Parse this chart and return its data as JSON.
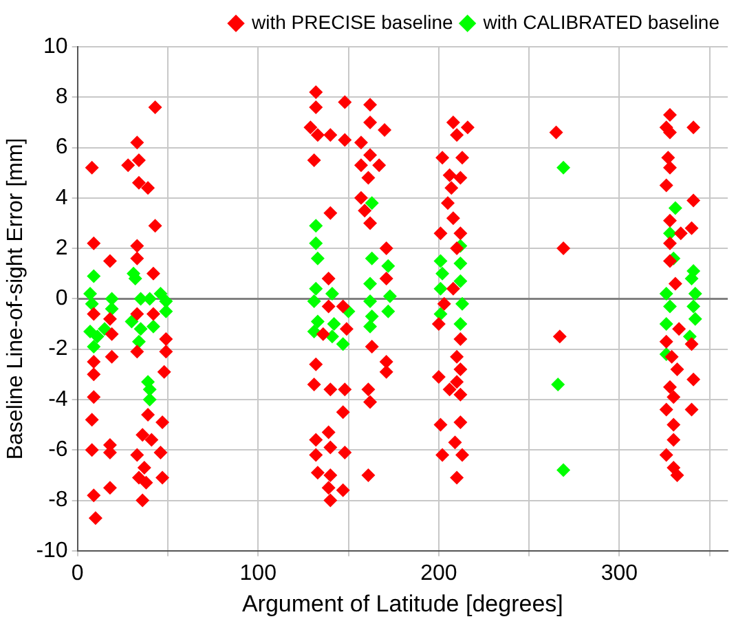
{
  "chart_data": {
    "type": "scatter",
    "xlabel": "Argument of Latitude [degrees]",
    "ylabel": "Baseline Line-of-sight Error [mm]",
    "xlim": [
      0,
      360
    ],
    "xticks": [
      0,
      {
        "value": 50,
        "label": null
      },
      100,
      {
        "value": 150,
        "label": null
      },
      200,
      {
        "value": 250,
        "label": null
      },
      300,
      {
        "value": 350,
        "label": null
      }
    ],
    "ylim": [
      -10,
      10
    ],
    "yticks": [
      -10,
      -8,
      -6,
      -4,
      -2,
      0,
      2,
      4,
      6,
      8,
      10
    ],
    "grid": true,
    "legend": "top right",
    "marker": "diamond",
    "ref_lines": [
      {
        "axis": "y",
        "value": 0,
        "color": "#808080"
      }
    ],
    "series": [
      {
        "name": "with PRECISE baseline",
        "color": "#ff0000",
        "x": [
          8,
          43,
          33,
          34,
          28,
          34,
          39,
          43,
          9,
          18,
          33,
          33,
          42,
          9,
          18,
          19,
          33,
          42,
          49,
          49,
          33,
          9,
          9,
          19,
          48,
          9,
          8,
          39,
          47,
          36,
          41,
          8,
          18,
          18,
          33,
          46,
          37,
          34,
          38,
          47,
          36,
          9,
          18,
          10,
          132,
          132,
          148,
          129,
          133,
          140,
          131,
          148,
          157,
          162,
          162,
          170,
          162,
          167,
          157,
          161,
          157,
          159,
          162,
          140,
          171,
          171,
          139,
          139,
          147,
          136,
          149,
          132,
          131,
          140,
          148,
          147,
          161,
          162,
          163,
          171,
          171,
          132,
          139,
          132,
          140,
          148,
          133,
          140,
          147,
          139,
          140,
          161,
          208,
          216,
          210,
          202,
          213,
          206,
          212,
          207,
          205,
          208,
          201,
          212,
          210,
          208,
          203,
          200,
          212,
          210,
          200,
          212,
          206,
          212,
          210,
          201,
          212,
          209,
          202,
          213,
          210,
          265,
          269,
          267,
          326,
          328,
          341,
          328,
          327,
          328,
          326,
          341,
          328,
          340,
          334,
          328,
          328,
          331,
          333,
          326,
          340,
          329,
          332,
          341,
          328,
          330,
          326,
          340,
          330,
          330,
          326,
          330,
          332
        ],
        "values": [
          5.2,
          7.6,
          6.2,
          5.5,
          5.3,
          4.6,
          4.4,
          2.9,
          2.2,
          1.5,
          2.1,
          1.6,
          1.0,
          -0.6,
          -0.8,
          -1.4,
          -0.6,
          -0.6,
          -1.6,
          -2.1,
          -2.1,
          -2.5,
          -3.0,
          -2.3,
          -2.9,
          -3.9,
          -4.8,
          -4.6,
          -4.9,
          -5.4,
          -5.6,
          -6.0,
          -5.8,
          -6.1,
          -6.2,
          -6.1,
          -6.7,
          -7.1,
          -7.3,
          -7.1,
          -8.0,
          -7.8,
          -7.5,
          -8.7,
          8.2,
          7.6,
          7.8,
          6.8,
          6.5,
          6.5,
          5.5,
          6.3,
          6.2,
          7.7,
          7.0,
          6.7,
          5.7,
          5.3,
          5.3,
          4.8,
          4.0,
          3.5,
          3.0,
          3.4,
          2.0,
          0.8,
          0.8,
          -0.3,
          -0.3,
          -1.4,
          -1.2,
          -2.6,
          -3.4,
          -3.6,
          -3.6,
          -4.5,
          -3.6,
          -4.1,
          -1.9,
          -2.5,
          -2.9,
          -5.6,
          -5.3,
          -6.2,
          -5.9,
          -6.1,
          -6.9,
          -7.0,
          -7.6,
          -7.5,
          -8.0,
          -7.0,
          7.0,
          6.8,
          6.5,
          5.6,
          5.6,
          4.9,
          4.8,
          4.4,
          3.8,
          3.2,
          2.6,
          2.6,
          2.0,
          0.4,
          -0.2,
          -1.0,
          -1.6,
          -2.3,
          -3.1,
          -2.8,
          -3.6,
          -3.8,
          -3.3,
          -5.0,
          -4.9,
          -5.7,
          -6.2,
          -6.2,
          -7.1,
          6.6,
          2.0,
          -1.5,
          6.8,
          7.3,
          6.8,
          6.6,
          5.6,
          5.2,
          4.5,
          3.9,
          3.1,
          2.8,
          2.6,
          2.2,
          1.5,
          0.6,
          -1.2,
          -1.7,
          -1.8,
          -2.3,
          -2.8,
          -3.2,
          -3.5,
          -3.9,
          -4.4,
          -4.4,
          -5.0,
          -5.6,
          -6.2,
          -6.7,
          -7.0
        ]
      },
      {
        "name": "with CALIBRATED baseline",
        "color": "#00ff00",
        "x": [
          9,
          7,
          8,
          7,
          9,
          11,
          19,
          19,
          15,
          31,
          32,
          35,
          30,
          35,
          34,
          40,
          42,
          46,
          49,
          49,
          39,
          40,
          40,
          132,
          132,
          133,
          132,
          131,
          133,
          131,
          141,
          142,
          141,
          147,
          150,
          163,
          163,
          162,
          162,
          163,
          162,
          172,
          173,
          172,
          201,
          202,
          201,
          201,
          212,
          212,
          213,
          212,
          212,
          269,
          266,
          269,
          331,
          328,
          330,
          341,
          340,
          326,
          342,
          328,
          341,
          342,
          326,
          339,
          326
        ],
        "values": [
          0.9,
          0.2,
          -0.2,
          -1.3,
          -1.9,
          -1.5,
          0.0,
          -0.4,
          -1.2,
          1.0,
          0.8,
          0.0,
          -0.9,
          -1.2,
          -1.7,
          0.0,
          -1.1,
          0.2,
          -0.1,
          -0.5,
          -3.3,
          -3.6,
          -4.0,
          2.9,
          2.2,
          1.6,
          0.4,
          -0.1,
          -0.9,
          -1.3,
          0.2,
          -1.0,
          -1.5,
          -1.8,
          -0.5,
          3.8,
          1.6,
          0.6,
          -0.1,
          -0.7,
          -1.1,
          1.3,
          0.1,
          -0.5,
          1.5,
          1.0,
          0.4,
          -0.6,
          1.4,
          0.7,
          -0.2,
          -1.0,
          2.1,
          5.2,
          -3.4,
          -6.8,
          3.6,
          2.6,
          1.6,
          1.1,
          0.8,
          0.2,
          0.2,
          -0.3,
          -0.3,
          -0.8,
          -1.0,
          -1.5,
          -2.2
        ]
      }
    ]
  }
}
